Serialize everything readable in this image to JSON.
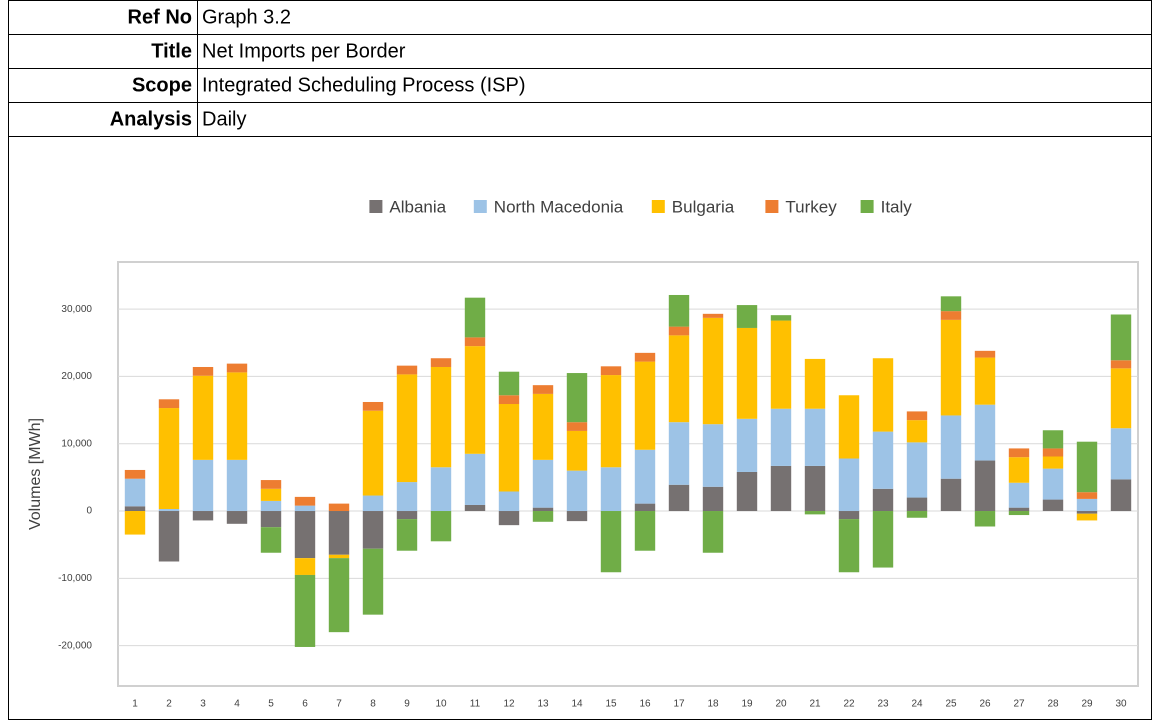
{
  "header": {
    "rows": [
      [
        "Ref No",
        "Graph 3.2"
      ],
      [
        "Title",
        "Net Imports per Border"
      ],
      [
        "Scope",
        "Integrated Scheduling Process (ISP)"
      ],
      [
        "Analysis",
        "Daily"
      ]
    ]
  },
  "chart_data": {
    "type": "stacked_bar",
    "y_label": "Volumes [MWh]",
    "categories": [
      "1",
      "2",
      "3",
      "4",
      "5",
      "6",
      "7",
      "8",
      "9",
      "10",
      "11",
      "12",
      "13",
      "14",
      "15",
      "16",
      "17",
      "18",
      "19",
      "20",
      "21",
      "22",
      "23",
      "24",
      "25",
      "26",
      "27",
      "28",
      "29",
      "30"
    ],
    "series": [
      {
        "name": "Albania",
        "color": "#767171",
        "values": [
          700,
          -7500,
          -1400,
          -1900,
          -2400,
          -7000,
          -6500,
          -5600,
          -1200,
          0,
          900,
          -2100,
          500,
          -1500,
          0,
          1100,
          3900,
          3600,
          5800,
          6700,
          6700,
          -1200,
          3300,
          2000,
          4800,
          7500,
          500,
          1700,
          -400,
          4700
        ]
      },
      {
        "name": "North Macedonia",
        "color": "#9dc3e6",
        "values": [
          4100,
          300,
          7600,
          7600,
          1500,
          800,
          0,
          2300,
          4300,
          6500,
          7600,
          2900,
          7100,
          6000,
          6500,
          8000,
          9300,
          9300,
          7900,
          8500,
          8500,
          7800,
          8500,
          8200,
          9400,
          8300,
          3700,
          4600,
          1800,
          7600
        ]
      },
      {
        "name": "Bulgaria",
        "color": "#ffc000",
        "values": [
          -3500,
          15000,
          12500,
          13000,
          1800,
          -2500,
          -500,
          12600,
          16000,
          14900,
          16000,
          13000,
          9800,
          5900,
          13700,
          13100,
          12900,
          15800,
          13500,
          13100,
          7400,
          9400,
          10900,
          3300,
          14200,
          7000,
          3800,
          1800,
          -1000,
          8900
        ]
      },
      {
        "name": "Turkey",
        "color": "#ed7d31",
        "values": [
          1300,
          1300,
          1300,
          1300,
          1300,
          1300,
          1100,
          1300,
          1300,
          1300,
          1300,
          1300,
          1300,
          1300,
          1300,
          1300,
          1300,
          600,
          0,
          0,
          0,
          0,
          0,
          1300,
          1300,
          1000,
          1300,
          1200,
          1000,
          1200
        ]
      },
      {
        "name": "Italy",
        "color": "#70ad47",
        "values": [
          0,
          0,
          0,
          0,
          -3800,
          -10700,
          -11000,
          -9800,
          -4700,
          -4500,
          5900,
          3500,
          -1600,
          7300,
          -9100,
          -5900,
          4700,
          -6200,
          3400,
          800,
          -500,
          -7900,
          -8400,
          -1000,
          2200,
          -2300,
          -600,
          2700,
          7500,
          6800
        ]
      }
    ],
    "ylim": [
      -26000,
      37000
    ],
    "yticks": [
      {
        "value": -20000,
        "label": "-20,000"
      },
      {
        "value": -10000,
        "label": "-10,000"
      },
      0,
      {
        "value": 10000,
        "label": "10,000"
      },
      {
        "value": 20000,
        "label": "20,000"
      },
      {
        "value": 30000,
        "label": "30,000"
      }
    ],
    "grid": true,
    "legend": "top"
  }
}
